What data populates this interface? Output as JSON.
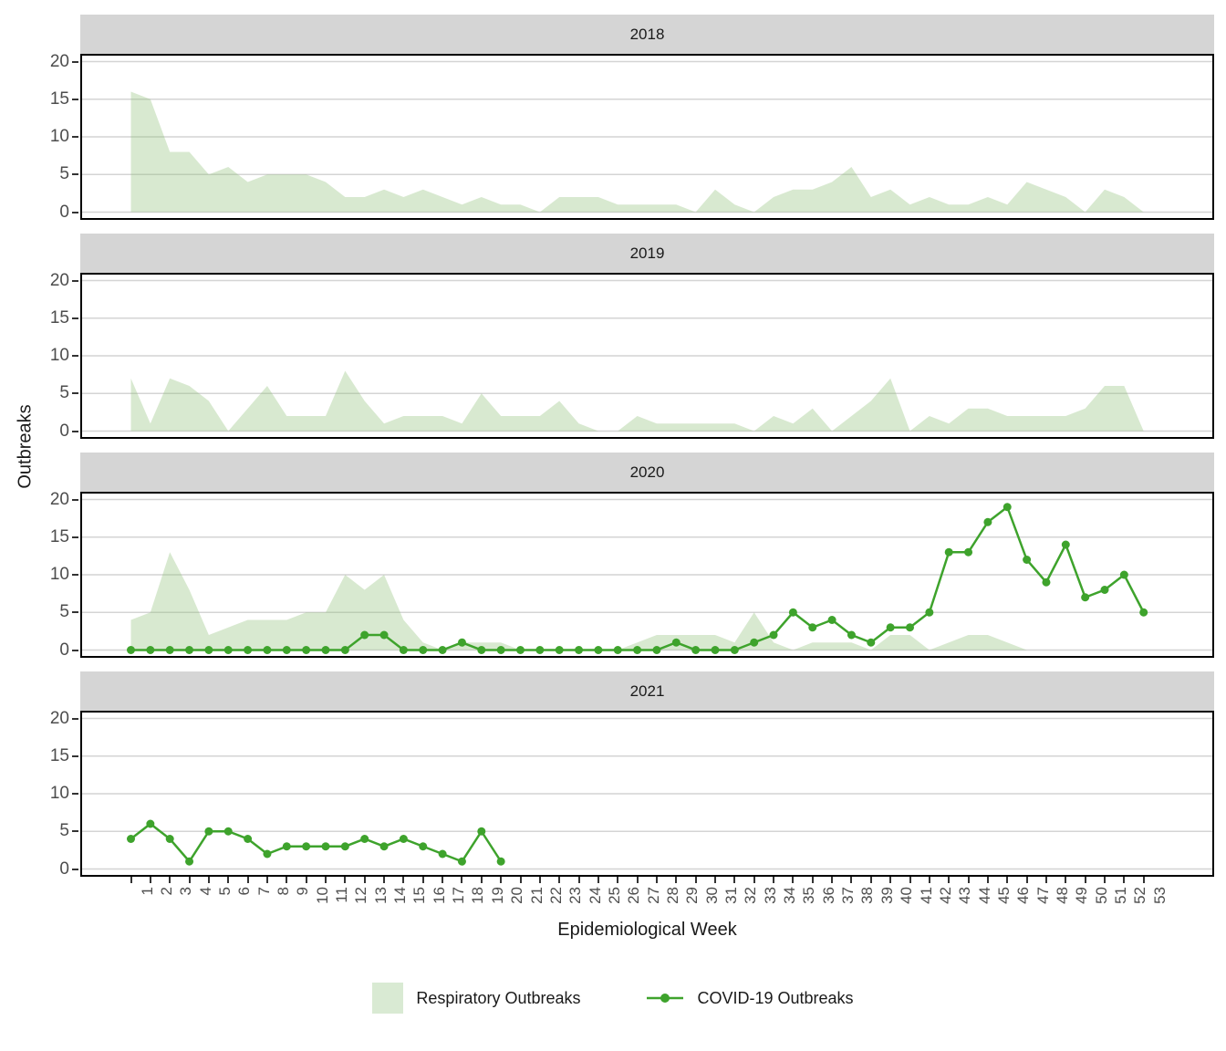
{
  "ylabel": "Outbreaks",
  "xlabel": "Epidemiological Week",
  "legend": {
    "respiratory_label": "Respiratory Outbreaks",
    "covid_label": "COVID-19 Outbreaks"
  },
  "colors": {
    "area_fill_solid": "#D9EAD3",
    "area_fill_rgba": "rgba(144,192,121,0.35)",
    "line": "#3EA32C",
    "grid": "#D4D4D4",
    "axis_text": "#4D4D4D",
    "strip_bg": "#D5D5D5",
    "panel_border": "#000000"
  },
  "chart_data": {
    "type": "area+line",
    "faceted_by": "year",
    "facet_titles": [
      "2018",
      "2019",
      "2020",
      "2021"
    ],
    "x_weeks": [
      1,
      2,
      3,
      4,
      5,
      6,
      7,
      8,
      9,
      10,
      11,
      12,
      13,
      14,
      15,
      16,
      17,
      18,
      19,
      20,
      21,
      22,
      23,
      24,
      25,
      26,
      27,
      28,
      29,
      30,
      31,
      32,
      33,
      34,
      35,
      36,
      37,
      38,
      39,
      40,
      41,
      42,
      43,
      44,
      45,
      46,
      47,
      48,
      49,
      50,
      51,
      52,
      53
    ],
    "xlabel": "Epidemiological Week",
    "ylabel": "Outbreaks",
    "ylim": [
      0,
      21
    ],
    "yticks": [
      0,
      5,
      10,
      15,
      20
    ],
    "grid": "horizontal major gridlines only",
    "legend_position": "bottom",
    "series_legend": [
      {
        "name": "Respiratory Outbreaks",
        "type": "area",
        "color": "#D9EAD3"
      },
      {
        "name": "COVID-19 Outbreaks",
        "type": "line+points",
        "color": "#3EA32C"
      }
    ],
    "facets": [
      {
        "year": "2018",
        "respiratory": [
          16,
          15,
          8,
          8,
          5,
          6,
          4,
          5,
          5,
          5,
          4,
          2,
          2,
          3,
          2,
          3,
          2,
          1,
          2,
          1,
          1,
          0,
          2,
          2,
          2,
          1,
          1,
          1,
          1,
          0,
          3,
          1,
          0,
          2,
          3,
          3,
          4,
          6,
          2,
          3,
          1,
          2,
          1,
          1,
          2,
          1,
          4,
          3,
          2,
          0,
          3,
          2,
          0
        ],
        "covid": null
      },
      {
        "year": "2019",
        "respiratory": [
          7,
          1,
          7,
          6,
          4,
          0,
          3,
          6,
          2,
          2,
          2,
          8,
          4,
          1,
          2,
          2,
          2,
          1,
          5,
          2,
          2,
          2,
          4,
          1,
          0,
          0,
          2,
          1,
          1,
          1,
          1,
          1,
          0,
          2,
          1,
          3,
          0,
          2,
          4,
          7,
          0,
          2,
          1,
          3,
          3,
          2,
          2,
          2,
          2,
          3,
          6,
          6,
          0
        ],
        "covid": null
      },
      {
        "year": "2020",
        "respiratory": [
          4,
          5,
          13,
          8,
          2,
          3,
          4,
          4,
          4,
          5,
          5,
          10,
          8,
          10,
          4,
          1,
          0,
          1,
          1,
          1,
          0,
          0,
          0,
          0,
          0,
          0,
          1,
          2,
          2,
          2,
          2,
          1,
          5,
          1,
          0,
          1,
          1,
          1,
          0,
          2,
          2,
          0,
          1,
          2,
          2,
          1,
          0,
          0,
          0,
          0,
          0,
          0,
          0
        ],
        "covid": [
          0,
          0,
          0,
          0,
          0,
          0,
          0,
          0,
          0,
          0,
          0,
          0,
          2,
          2,
          0,
          0,
          0,
          1,
          0,
          0,
          0,
          0,
          0,
          0,
          0,
          0,
          0,
          0,
          1,
          0,
          0,
          0,
          1,
          2,
          5,
          3,
          4,
          2,
          1,
          3,
          3,
          5,
          13,
          13,
          17,
          19,
          12,
          9,
          14,
          7,
          8,
          10,
          5
        ]
      },
      {
        "year": "2021",
        "respiratory": null,
        "covid": [
          4,
          6,
          4,
          1,
          5,
          5,
          4,
          2,
          3,
          3,
          3,
          3,
          4,
          3,
          4,
          3,
          2,
          1,
          5,
          1
        ]
      }
    ]
  }
}
